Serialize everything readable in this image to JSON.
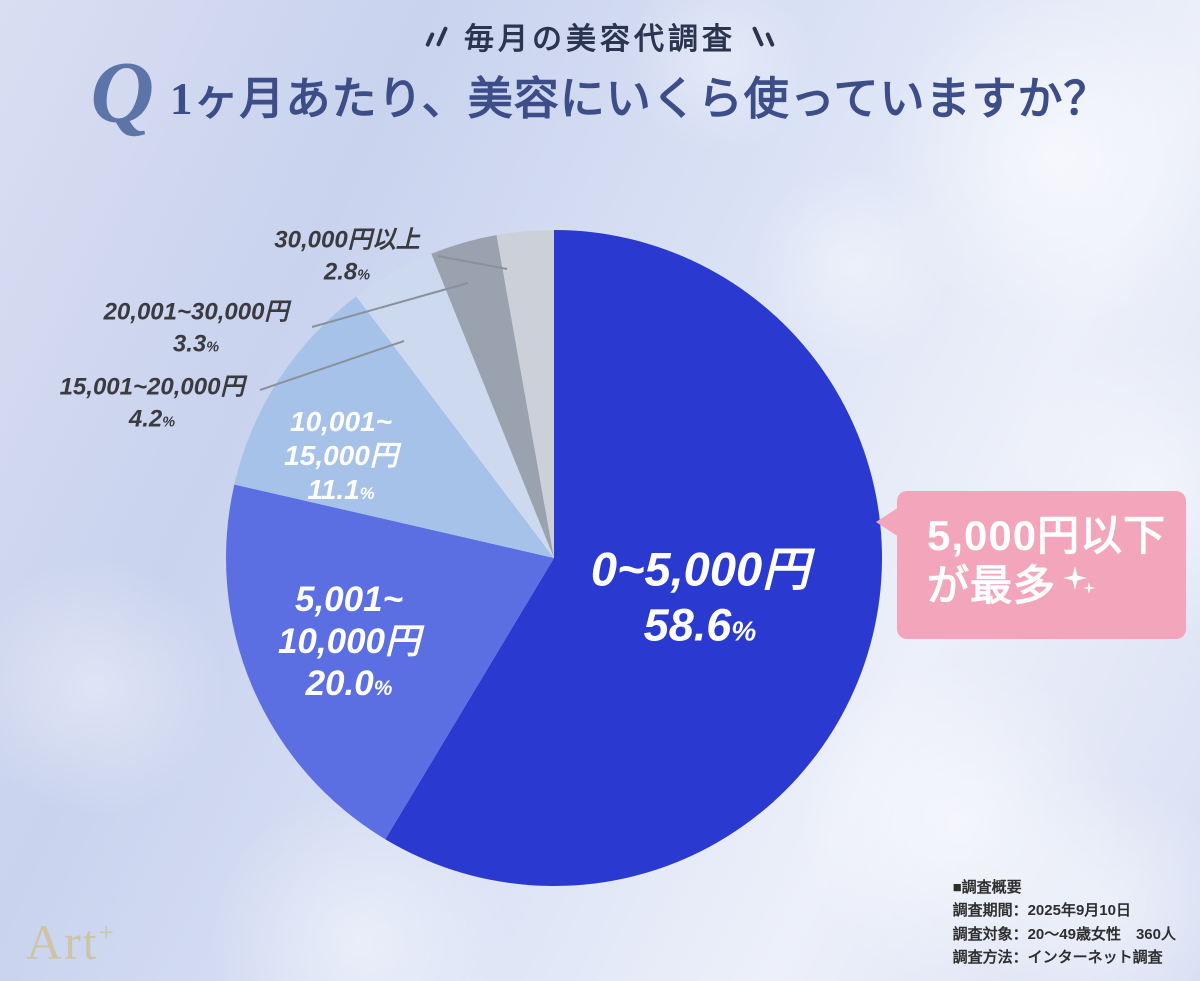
{
  "header": {
    "badge": "毎月の美容代調査"
  },
  "title": {
    "q": "Q",
    "text": "1ヶ月あたり、美容にいくら使っていますか？"
  },
  "chart_data": {
    "type": "pie",
    "title": "1ヶ月あたり、美容にいくら使っていますか？",
    "unit": "%",
    "start_angle_deg": 0,
    "direction": "clockwise",
    "slices": [
      {
        "label": "0~5,000円",
        "value": 58.6,
        "value_display": "58.6",
        "color": "#2a3ad0",
        "label_lines": [
          "0~5,000円"
        ]
      },
      {
        "label": "5,001~10,000円",
        "value": 20.0,
        "value_display": "20.0",
        "color": "#5b6fe2",
        "label_lines": [
          "5,001~",
          "10,000円"
        ]
      },
      {
        "label": "10,001~15,000円",
        "value": 11.1,
        "value_display": "11.1",
        "color": "#a6c2e9",
        "label_lines": [
          "10,001~",
          "15,000円"
        ]
      },
      {
        "label": "15,001~20,000円",
        "value": 4.2,
        "value_display": "4.2",
        "color": "#ccd9ef",
        "label_lines": [
          "15,001~20,000円"
        ]
      },
      {
        "label": "20,001~30,000円",
        "value": 3.3,
        "value_display": "3.3",
        "color": "#9aa1af",
        "label_lines": [
          "20,001~30,000円"
        ]
      },
      {
        "label": "30,000円以上",
        "value": 2.8,
        "value_display": "2.8",
        "color": "#ccd1d9",
        "label_lines": [
          "30,000円以上"
        ]
      }
    ]
  },
  "callout": {
    "line1": "5,000円以下",
    "line2": "が最多",
    "color": "#f2a5bb"
  },
  "icons": {
    "sparkle": "four-point-star"
  },
  "footer": {
    "logo": "Art",
    "logo_sup": "+",
    "survey": {
      "heading": "■調査概要",
      "period": "調査期間：2025年9月10日",
      "subjects": "調査対象：20〜49歳女性　360人",
      "method": "調査方法：インターネット調査"
    }
  }
}
